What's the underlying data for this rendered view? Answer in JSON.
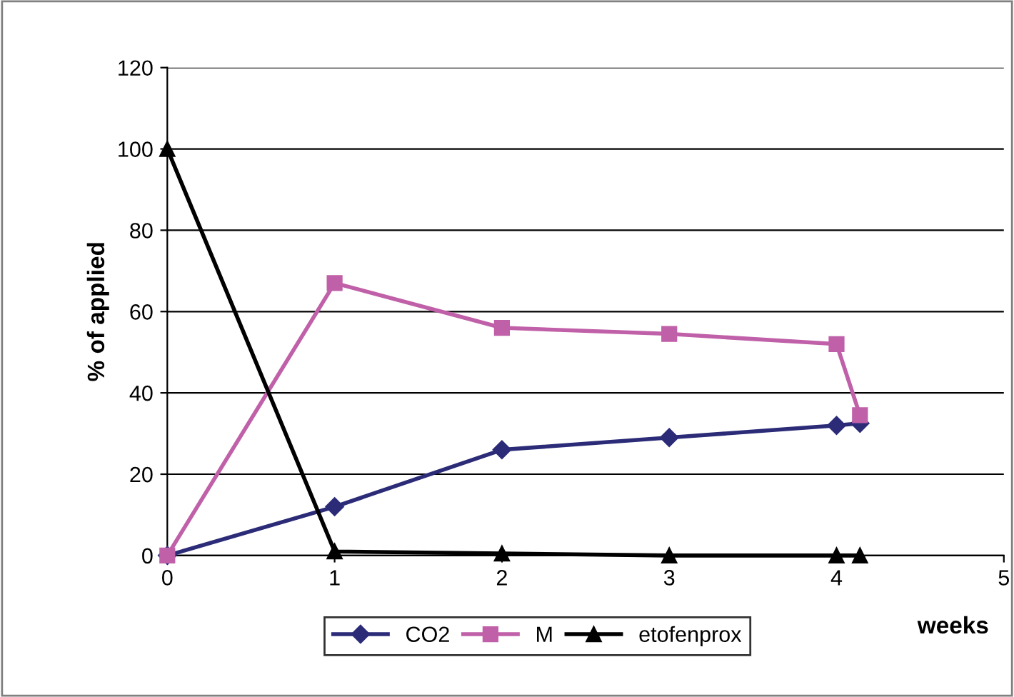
{
  "chart_data": {
    "type": "line",
    "xlabel": "weeks",
    "ylabel": "% of applied",
    "xlim": [
      0,
      5
    ],
    "ylim": [
      0,
      120
    ],
    "xticks": [
      0,
      1,
      2,
      3,
      4,
      5
    ],
    "yticks": [
      0,
      20,
      40,
      60,
      80,
      100,
      120
    ],
    "grid": "y",
    "legend": "bottom",
    "line_style": "solid",
    "series": [
      {
        "name": "CO2",
        "color": "#2b2b78",
        "marker": "diamond",
        "x": [
          0,
          1,
          2,
          3,
          4,
          4.14
        ],
        "values": [
          0,
          12,
          26,
          29,
          32,
          32.5
        ]
      },
      {
        "name": "M",
        "color": "#c060a8",
        "marker": "square",
        "x": [
          0,
          1,
          2,
          3,
          4,
          4.14
        ],
        "values": [
          0,
          67,
          56,
          54.5,
          52,
          34.5
        ]
      },
      {
        "name": "etofenprox",
        "color": "#000000",
        "marker": "triangle",
        "x": [
          0,
          1,
          2,
          3,
          4,
          4.14
        ],
        "values": [
          100,
          1,
          0.5,
          0,
          0,
          0
        ]
      }
    ]
  }
}
